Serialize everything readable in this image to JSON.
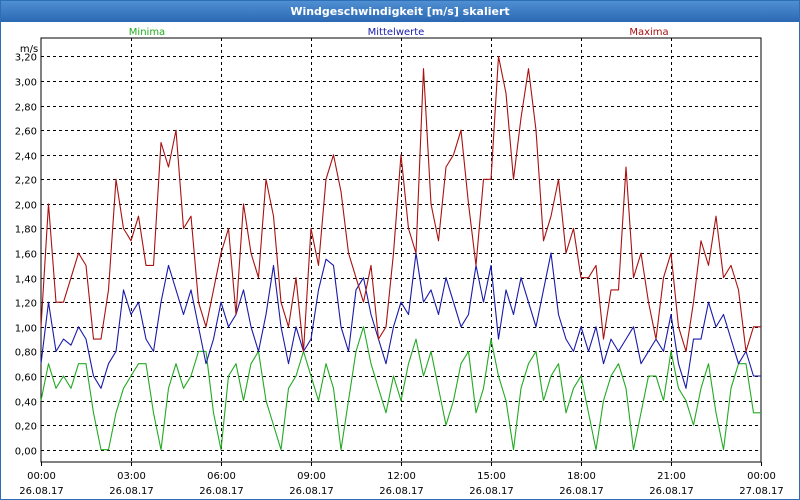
{
  "window": {
    "title": "Windgeschwindigkeit [m/s] skaliert"
  },
  "chart_data": {
    "type": "line",
    "title": "Windgeschwindigkeit [m/s] skaliert",
    "ylabel": "m/s",
    "ylim": [
      -0.1,
      3.35
    ],
    "grid": true,
    "legend_placement": "top",
    "y_ticks": [
      "0,00",
      "0,20",
      "0,40",
      "0,60",
      "0,80",
      "1,00",
      "1,20",
      "1,40",
      "1,60",
      "1,80",
      "2,00",
      "2,20",
      "2,40",
      "2,60",
      "2,80",
      "3,00",
      "3,20"
    ],
    "x_ticks": [
      {
        "time": "00:00",
        "date": "26.08.17"
      },
      {
        "time": "03:00",
        "date": "26.08.17"
      },
      {
        "time": "06:00",
        "date": "26.08.17"
      },
      {
        "time": "09:00",
        "date": "26.08.17"
      },
      {
        "time": "12:00",
        "date": "26.08.17"
      },
      {
        "time": "15:00",
        "date": "26.08.17"
      },
      {
        "time": "18:00",
        "date": "26.08.17"
      },
      {
        "time": "21:00",
        "date": "26.08.17"
      },
      {
        "time": "00:00",
        "date": "27.08.17"
      }
    ],
    "x_hours": [
      0,
      0.25,
      0.5,
      0.75,
      1,
      1.25,
      1.5,
      1.75,
      2,
      2.25,
      2.5,
      2.75,
      3,
      3.25,
      3.5,
      3.75,
      4,
      4.25,
      4.5,
      4.75,
      5,
      5.25,
      5.5,
      5.75,
      6,
      6.25,
      6.5,
      6.75,
      7,
      7.25,
      7.5,
      7.75,
      8,
      8.25,
      8.5,
      8.75,
      9,
      9.25,
      9.5,
      9.75,
      10,
      10.25,
      10.5,
      10.75,
      11,
      11.25,
      11.5,
      11.75,
      12,
      12.25,
      12.5,
      12.75,
      13,
      13.25,
      13.5,
      13.75,
      14,
      14.25,
      14.5,
      14.75,
      15,
      15.25,
      15.5,
      15.75,
      16,
      16.25,
      16.5,
      16.75,
      17,
      17.25,
      17.5,
      17.75,
      18,
      18.25,
      18.5,
      18.75,
      19,
      19.25,
      19.5,
      19.75,
      20,
      20.25,
      20.5,
      20.75,
      21,
      21.25,
      21.5,
      21.75,
      22,
      22.25,
      22.5,
      22.75,
      23,
      23.25,
      23.5,
      23.75,
      24
    ],
    "series": [
      {
        "name": "Minima",
        "color": "#22aa22",
        "values": [
          0.4,
          0.7,
          0.5,
          0.6,
          0.5,
          0.7,
          0.7,
          0.3,
          0.0,
          0.0,
          0.3,
          0.5,
          0.6,
          0.7,
          0.7,
          0.3,
          0.0,
          0.5,
          0.7,
          0.5,
          0.6,
          0.8,
          0.8,
          0.3,
          0.0,
          0.6,
          0.7,
          0.4,
          0.7,
          0.8,
          0.4,
          0.2,
          0.0,
          0.5,
          0.6,
          0.8,
          0.6,
          0.4,
          0.7,
          0.5,
          0.0,
          0.4,
          0.8,
          1.0,
          0.7,
          0.5,
          0.3,
          0.6,
          0.4,
          0.7,
          0.9,
          0.6,
          0.8,
          0.5,
          0.2,
          0.4,
          0.7,
          0.8,
          0.3,
          0.5,
          0.9,
          0.6,
          0.4,
          0.0,
          0.5,
          0.7,
          0.8,
          0.4,
          0.6,
          0.7,
          0.3,
          0.5,
          0.6,
          0.3,
          0.0,
          0.4,
          0.6,
          0.7,
          0.5,
          0.0,
          0.3,
          0.6,
          0.6,
          0.4,
          0.8,
          0.5,
          0.4,
          0.2,
          0.5,
          0.7,
          0.3,
          0.0,
          0.5,
          0.7,
          0.7,
          0.3,
          0.3
        ]
      },
      {
        "name": "Mittelwerte",
        "color": "#1a1aaa",
        "values": [
          0.7,
          1.2,
          0.8,
          0.9,
          0.85,
          1.0,
          0.9,
          0.6,
          0.5,
          0.7,
          0.8,
          1.3,
          1.1,
          1.2,
          0.9,
          0.8,
          1.2,
          1.5,
          1.3,
          1.1,
          1.3,
          1.0,
          0.7,
          0.9,
          1.2,
          1.0,
          1.1,
          1.3,
          1.0,
          0.8,
          1.1,
          1.5,
          1.0,
          0.7,
          1.0,
          0.8,
          0.9,
          1.3,
          1.55,
          1.5,
          1.0,
          0.8,
          1.3,
          1.4,
          1.1,
          0.9,
          0.7,
          1.0,
          1.2,
          1.1,
          1.6,
          1.2,
          1.3,
          1.1,
          1.4,
          1.2,
          1.0,
          1.1,
          1.5,
          1.2,
          1.5,
          0.9,
          1.3,
          1.1,
          1.4,
          1.2,
          1.0,
          1.3,
          1.6,
          1.1,
          0.9,
          0.8,
          1.0,
          0.8,
          1.0,
          0.7,
          0.9,
          0.8,
          0.9,
          1.0,
          0.7,
          0.8,
          0.9,
          0.8,
          1.1,
          0.7,
          0.5,
          0.9,
          0.9,
          1.2,
          1.0,
          1.1,
          0.9,
          0.7,
          0.8,
          0.6,
          0.6
        ]
      },
      {
        "name": "Maxima",
        "color": "#aa1111",
        "values": [
          1.0,
          2.0,
          1.2,
          1.2,
          1.4,
          1.6,
          1.5,
          0.9,
          0.9,
          1.3,
          2.2,
          1.8,
          1.7,
          1.9,
          1.5,
          1.5,
          2.5,
          2.3,
          2.6,
          1.8,
          1.9,
          1.2,
          1.0,
          1.3,
          1.6,
          1.8,
          1.1,
          2.0,
          1.6,
          1.4,
          2.2,
          1.9,
          1.2,
          1.0,
          1.4,
          0.8,
          1.8,
          1.5,
          2.2,
          2.4,
          2.1,
          1.6,
          1.4,
          1.2,
          1.5,
          0.9,
          1.0,
          1.6,
          2.4,
          1.8,
          1.6,
          3.1,
          2.0,
          1.7,
          2.3,
          2.4,
          2.6,
          2.0,
          1.5,
          2.2,
          2.2,
          3.2,
          2.9,
          2.2,
          2.7,
          3.1,
          2.6,
          1.7,
          1.9,
          2.2,
          1.6,
          1.8,
          1.4,
          1.4,
          1.5,
          0.9,
          1.3,
          1.3,
          2.3,
          1.4,
          1.6,
          1.2,
          0.9,
          1.4,
          1.6,
          1.0,
          0.8,
          1.2,
          1.7,
          1.5,
          1.9,
          1.4,
          1.5,
          1.3,
          0.8,
          1.0,
          1.0
        ]
      }
    ]
  }
}
